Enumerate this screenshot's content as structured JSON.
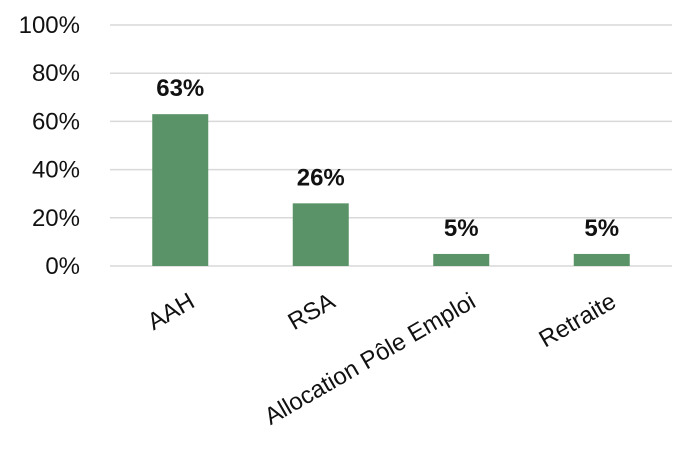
{
  "chart_data": {
    "type": "bar",
    "categories": [
      "AAH",
      "RSA",
      "Allocation Pôle Emploi",
      "Retraite"
    ],
    "values": [
      63,
      26,
      5,
      5
    ],
    "data_labels": [
      "63%",
      "26%",
      "5%",
      "5%"
    ],
    "ylim": [
      0,
      100
    ],
    "yticks": [
      0,
      20,
      40,
      60,
      80,
      100
    ],
    "ytick_labels": [
      "0%",
      "20%",
      "40%",
      "60%",
      "80%",
      "100%"
    ],
    "grid": true,
    "legend": false,
    "bar_color": "#5a9367",
    "grid_color": "#d9d9d9"
  }
}
